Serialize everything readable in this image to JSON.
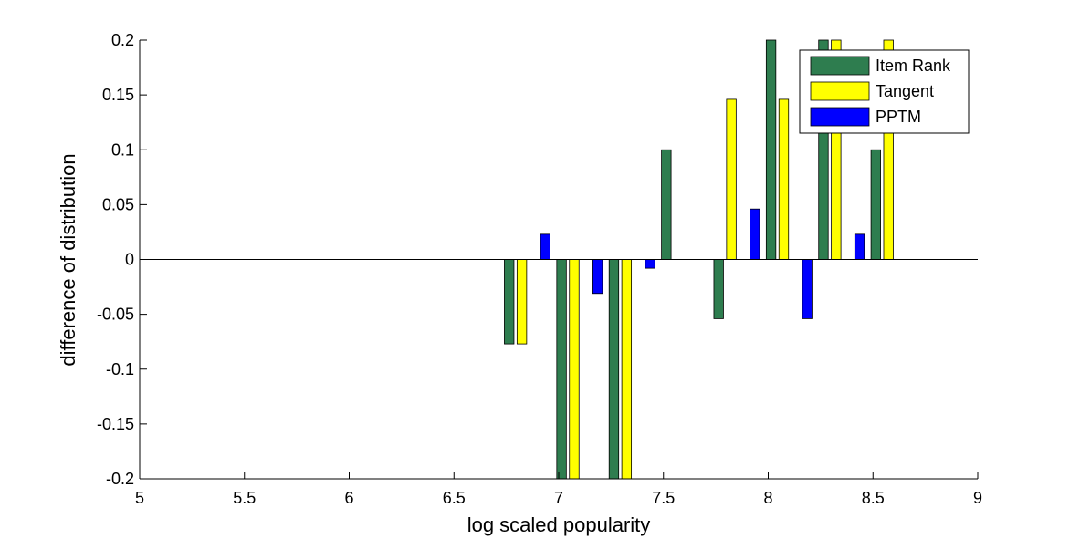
{
  "chart_data": {
    "type": "bar",
    "title": "",
    "xlabel": "log scaled popularity",
    "ylabel": "difference of distribution",
    "xlim": [
      5,
      9
    ],
    "ylim": [
      -0.2,
      0.2
    ],
    "xticks": [
      "5",
      "5.5",
      "6",
      "6.5",
      "7",
      "7.5",
      "8",
      "8.5",
      "9"
    ],
    "yticks": [
      "-0.2",
      "-0.15",
      "-0.1",
      "-0.05",
      "0",
      "0.05",
      "0.1",
      "0.15",
      "0.2"
    ],
    "grid": false,
    "legend_position": "top-right",
    "bin_centers": [
      6.875,
      7.125,
      7.375,
      7.625,
      7.875,
      8.125,
      8.375,
      8.625
    ],
    "series": [
      {
        "name": "Item Rank",
        "color": "#2e7d4f",
        "values": [
          -0.077,
          -0.2,
          -0.2,
          0.1,
          -0.054,
          0.2,
          0.2,
          0.1
        ]
      },
      {
        "name": "Tangent",
        "color": "#ffff00",
        "values": [
          -0.077,
          -0.2,
          -0.2,
          0,
          0.146,
          0.146,
          0.2,
          0.2
        ]
      },
      {
        "name": "PPTM",
        "color": "#0000ff",
        "values": [
          0.023,
          -0.031,
          -0.008,
          0,
          0.046,
          -0.054,
          0.023,
          0
        ]
      }
    ]
  }
}
